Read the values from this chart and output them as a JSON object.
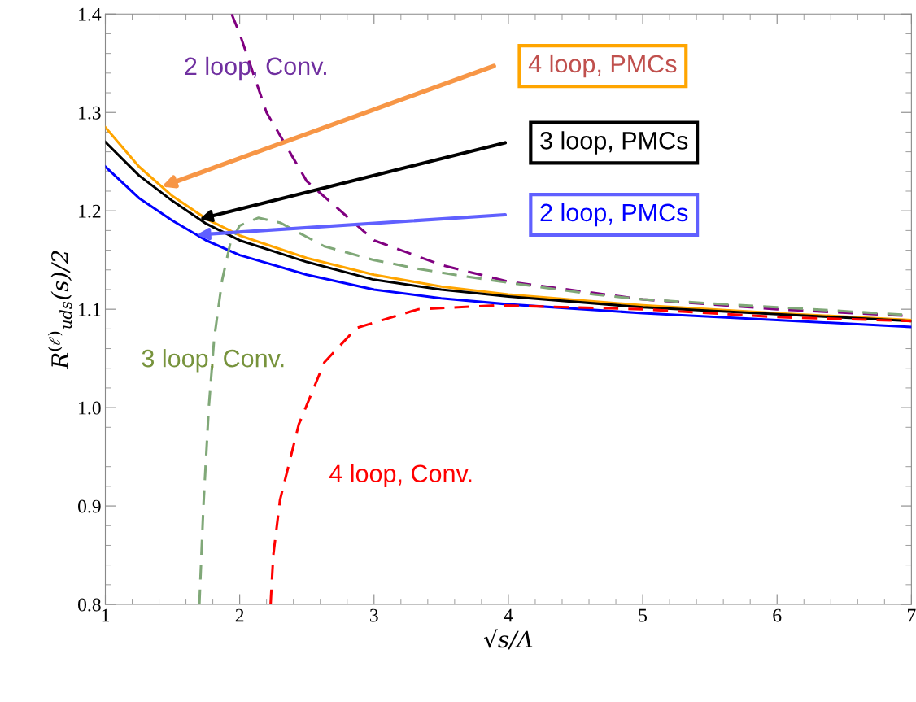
{
  "chart_data": {
    "type": "line",
    "xlabel": "√s/Λ",
    "ylabel": "R$^{(ℓ)}$$_{uds}$(s)/2",
    "xlim": [
      1,
      7
    ],
    "ylim": [
      0.8,
      1.4
    ],
    "xticks": [
      1,
      2,
      3,
      4,
      5,
      6,
      7
    ],
    "yticks": [
      0.8,
      0.9,
      {
        "value": 1.0,
        "label": "1.0"
      },
      1.1,
      1.2,
      1.3,
      1.4
    ],
    "grid": false,
    "legend": false,
    "marker": "none",
    "series": [
      {
        "name": "4 loop, PMCs",
        "color": "#ffa500",
        "line_style": "solid",
        "x": [
          1,
          1.25,
          1.5,
          1.75,
          2,
          2.5,
          3,
          3.5,
          4,
          5,
          6,
          7
        ],
        "values": [
          1.285,
          1.245,
          1.215,
          1.192,
          1.175,
          1.152,
          1.135,
          1.123,
          1.115,
          1.104,
          1.096,
          1.089
        ]
      },
      {
        "name": "3 loop, PMCs",
        "color": "#000000",
        "line_style": "solid",
        "x": [
          1,
          1.25,
          1.5,
          1.75,
          2,
          2.5,
          3,
          3.5,
          4,
          5,
          6,
          7
        ],
        "values": [
          1.27,
          1.236,
          1.21,
          1.187,
          1.17,
          1.148,
          1.13,
          1.12,
          1.113,
          1.102,
          1.095,
          1.088
        ]
      },
      {
        "name": "2 loop, PMCs",
        "color": "#0000ff",
        "line_style": "solid",
        "x": [
          1,
          1.25,
          1.5,
          1.75,
          2,
          2.5,
          3,
          3.5,
          4,
          5,
          6,
          7
        ],
        "values": [
          1.245,
          1.213,
          1.19,
          1.17,
          1.155,
          1.135,
          1.12,
          1.111,
          1.105,
          1.096,
          1.089,
          1.082
        ]
      },
      {
        "name": "2 loop, Conv.",
        "color": "#800080",
        "line_style": "dashed",
        "x": [
          1.94,
          2,
          2.2,
          2.5,
          3,
          3.5,
          4,
          5,
          6,
          7
        ],
        "values": [
          1.4,
          1.38,
          1.3,
          1.23,
          1.17,
          1.145,
          1.128,
          1.11,
          1.1,
          1.093
        ]
      },
      {
        "name": "3 loop, Conv.",
        "color": "#80a878",
        "line_style": "dashed",
        "x": [
          1.7,
          1.73,
          1.77,
          1.81,
          1.87,
          1.93,
          2.0,
          2.14,
          2.3,
          2.63,
          3.0,
          3.33,
          3.6,
          4,
          4.64,
          5,
          6,
          7
        ],
        "values": [
          0.8,
          0.9,
          1.0,
          1.07,
          1.13,
          1.167,
          1.185,
          1.193,
          1.188,
          1.164,
          1.15,
          1.141,
          1.135,
          1.127,
          1.115,
          1.11,
          1.102,
          1.094
        ]
      },
      {
        "name": "4 loop, Conv.",
        "color": "#ff0000",
        "line_style": "dashed",
        "x": [
          2.23,
          2.25,
          2.3,
          2.44,
          2.63,
          2.87,
          3.33,
          3.92,
          5,
          6,
          7
        ],
        "values": [
          0.8,
          0.85,
          0.906,
          0.983,
          1.046,
          1.081,
          1.1,
          1.104,
          1.1,
          1.092,
          1.088
        ]
      }
    ]
  }
}
